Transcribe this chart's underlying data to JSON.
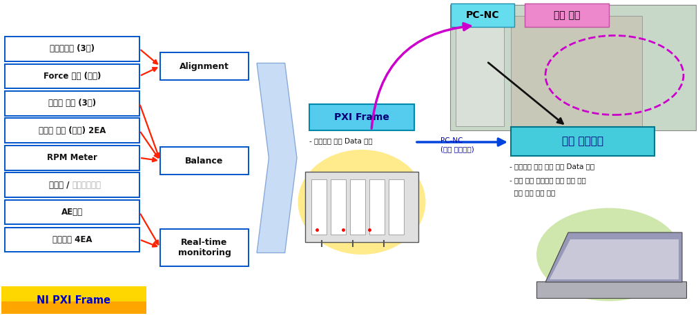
{
  "sensor_labels": [
    "공구동력계 (3축)",
    "Force 센서 (단축)",
    "가속도 센서 (3축)",
    "가속도 센서 (단축) 2EA",
    "RPM Meter",
    "갭센서 / 다이얼게이지",
    "AE센서",
    "온도센서 4EA"
  ],
  "right_boxes": [
    "Alignment",
    "Balance",
    "Real-time\nmonitoring"
  ],
  "pxi_label": "PXI Frame",
  "pxi_sub": "- 동기화된 신호 Data 취득",
  "analysis_label": "분석 프로그램",
  "analysis_sub1": "- 동기화된 다중 센서 신호 Data 분석",
  "analysis_sub2": "- 공구 위치 정보와의 교차 분석 통한",
  "analysis_sub3": "  문제 발생 위치 추적",
  "pcnc_label": "PC-NC",
  "multi_sensor_label": "다중 센서",
  "pcnc_sub1": "PC-NC",
  "pcnc_sub2": "(실제 공구위치)",
  "ni_pxi_label": "NI PXI Frame",
  "bg_color": "#ffffff",
  "sensor_box_color": "#ffffff",
  "sensor_box_border": "#0055cc",
  "right_box_border": "#0055cc",
  "arrow_red": "#ff2200",
  "arrow_blue": "#0044dd",
  "arrow_magenta": "#cc00cc",
  "arrow_black": "#111111",
  "pxi_bg": "#55ccee",
  "analysis_bg": "#44ccdd",
  "pcnc_bg": "#66ddee",
  "multi_bg": "#ee88cc",
  "ni_gold_top": "#FFD700",
  "ni_gold_bot": "#FFA500",
  "ni_text": "#0000cc",
  "chevron_face": "#c8ddf5",
  "chevron_edge": "#88aad8",
  "photo_bg": "#c8d8c8",
  "yellow_oval": "#ffe566",
  "green_oval": "#c0e090"
}
